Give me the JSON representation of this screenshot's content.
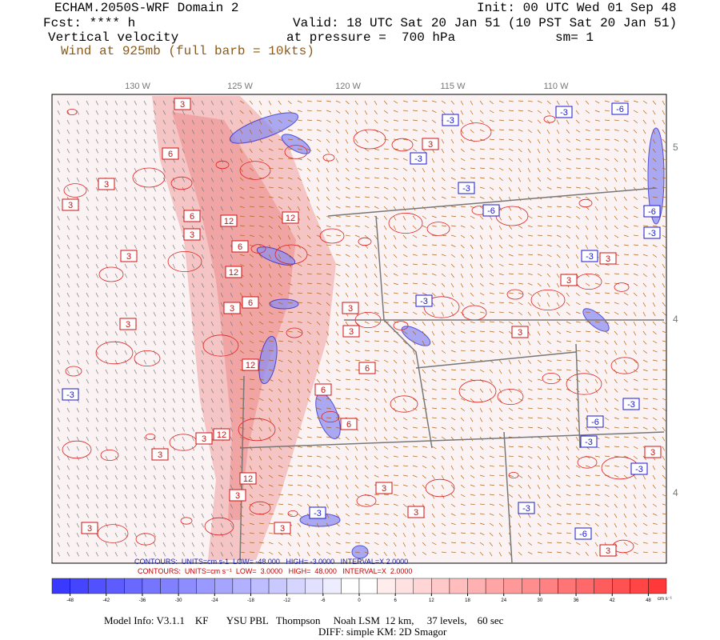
{
  "header": {
    "title": "ECHAM.2050S-WRF Domain 2",
    "init": "Init: 00 UTC Wed 01 Sep 48",
    "fcst": "Fcst: **** h",
    "valid": "Valid: 18 UTC Sat 20 Jan 51 (10 PST Sat 20 Jan 51)",
    "field": "Vertical velocity",
    "pressure": "at pressure =  700 hPa",
    "smoothing": "sm= 1",
    "wind": "Wind at 925mb (full barb = 10kts)"
  },
  "map": {
    "lon_labels": [
      "130 W",
      "125 W",
      "120 W",
      "115 W",
      "110 W"
    ],
    "lat_labels": [
      "5",
      "4",
      "4"
    ],
    "contour_labels": [
      "3",
      "6",
      "3",
      "3",
      "6",
      "3",
      "12",
      "12",
      "6",
      "3",
      "3",
      "6",
      "3",
      "3",
      "3",
      "12",
      "12",
      "6",
      "6",
      "-3",
      "6",
      "3",
      "12",
      "3",
      "12",
      "3",
      "-3",
      "3",
      "3",
      "3",
      "-3",
      "-6",
      "-3",
      "-3",
      "-3",
      "-6",
      "-6",
      "-3",
      "-3",
      "3",
      "3",
      "-3",
      "3",
      "-3",
      "-6",
      "-3",
      "-3",
      "3",
      "-3",
      "-6",
      "3",
      "3",
      "3"
    ]
  },
  "contour_info": {
    "negative": "CONTOURS:  UNITS=cm s-1  LOW= -48.000   HIGH= -3.0000   INTERVAL=X 2.0000",
    "positive": "CONTOURS:  UNITS=cm s⁻¹  LOW=  3.0000   HIGH=  48.000   INTERVAL=X  2.0000"
  },
  "colorbar": {
    "ticks": [
      -48,
      -42,
      -36,
      -30,
      -24,
      -18,
      -12,
      -6,
      0,
      6,
      12,
      18,
      24,
      30,
      36,
      42,
      48
    ],
    "unit": "cm s⁻¹"
  },
  "footer": {
    "model_info": "Model Info: V3.1.1    KF       YSU PBL   Thompson     Noah LSM  12 km,     37 levels,    60 sec",
    "diff": "DIFF: simple KM: 2D Smagor"
  }
}
